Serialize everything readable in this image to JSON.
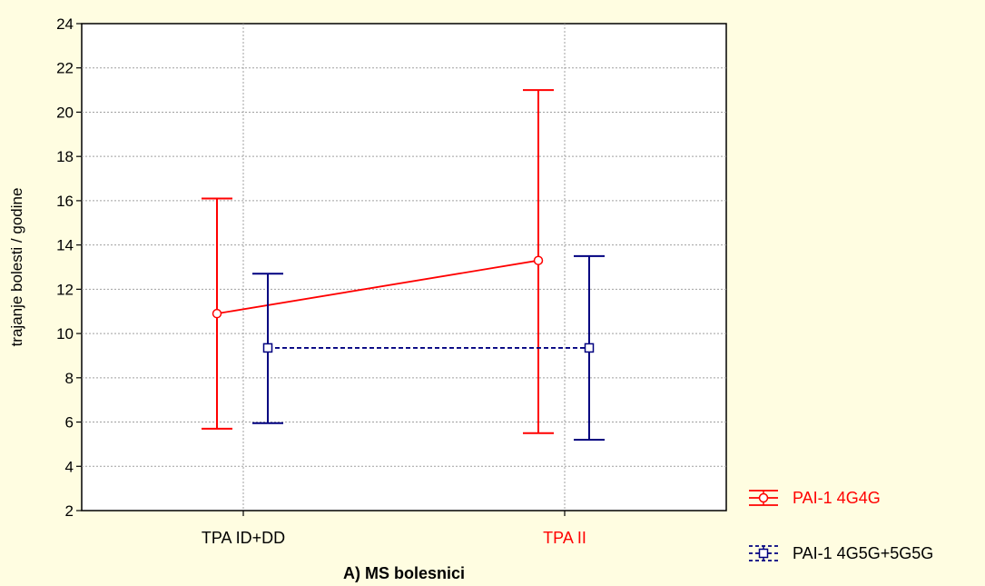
{
  "chart_data": {
    "type": "line",
    "title": "",
    "xlabel": "A) MS bolesnici",
    "ylabel": "trajanje bolesti / godine",
    "categories": [
      "TPA ID+DD",
      "TPA II"
    ],
    "category_colors": [
      "#000000",
      "#ff0000"
    ],
    "ylim": [
      2,
      24
    ],
    "yticks": [
      2,
      4,
      6,
      8,
      10,
      12,
      14,
      16,
      18,
      20,
      22,
      24
    ],
    "ytick_labels": [
      "2",
      "4",
      "6",
      "8",
      "10",
      "12",
      "14",
      "16",
      "18",
      "20",
      "22",
      "24"
    ],
    "grid": true,
    "legend_position": "bottom-right",
    "series": [
      {
        "name": "PAI-1 4G4G",
        "color": "#ff0000",
        "marker": "circle",
        "line_style": "solid",
        "values": [
          10.9,
          13.3
        ],
        "lower": [
          5.7,
          5.5
        ],
        "upper": [
          16.1,
          21.0
        ]
      },
      {
        "name": "PAI-1 4G5G+5G5G",
        "color": "#000080",
        "marker": "square",
        "line_style": "dashed",
        "values": [
          9.35,
          9.35
        ],
        "lower": [
          5.95,
          5.2
        ],
        "upper": [
          12.7,
          13.5
        ]
      }
    ]
  }
}
